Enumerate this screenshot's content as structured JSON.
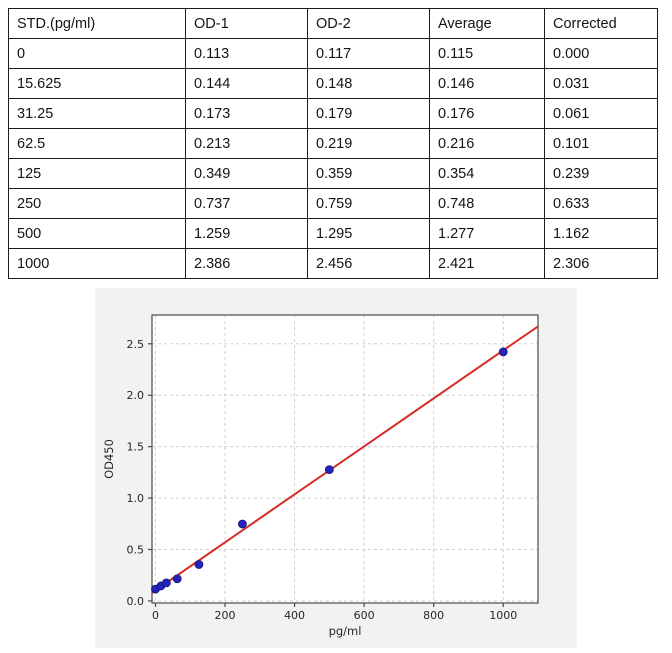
{
  "table": {
    "columns": [
      "STD.(pg/ml)",
      "OD-1",
      "OD-2",
      "Average",
      "Corrected"
    ],
    "rows": [
      [
        "0",
        "0.113",
        "0.117",
        "0.115",
        "0.000"
      ],
      [
        "15.625",
        "0.144",
        "0.148",
        "0.146",
        "0.031"
      ],
      [
        "31.25",
        "0.173",
        "0.179",
        "0.176",
        "0.061"
      ],
      [
        "62.5",
        "0.213",
        "0.219",
        "0.216",
        "0.101"
      ],
      [
        "125",
        "0.349",
        "0.359",
        "0.354",
        "0.239"
      ],
      [
        "250",
        "0.737",
        "0.759",
        "0.748",
        "0.633"
      ],
      [
        "500",
        "1.259",
        "1.295",
        "1.277",
        "1.162"
      ],
      [
        "1000",
        "2.386",
        "2.456",
        "2.421",
        "2.306"
      ]
    ]
  },
  "chart_data": {
    "type": "scatter",
    "title": "",
    "xlabel": "pg/ml",
    "ylabel": "OD450",
    "x": [
      0,
      15.625,
      31.25,
      62.5,
      125,
      250,
      500,
      1000
    ],
    "y": [
      0.115,
      0.146,
      0.176,
      0.216,
      0.354,
      0.748,
      1.277,
      2.421
    ],
    "fit_line": {
      "slope": 0.002333,
      "intercept": 0.103
    },
    "xlim": [
      -10,
      1100
    ],
    "ylim": [
      -0.02,
      2.78
    ],
    "xticks": {
      "values": [
        0,
        200,
        400,
        600,
        800,
        1000
      ],
      "labels": [
        "0",
        "200",
        "400",
        "600",
        "800",
        "1000"
      ]
    },
    "yticks": {
      "values": [
        0,
        0.5,
        1.0,
        1.5,
        2.0,
        2.5
      ],
      "labels": [
        "0.0",
        "0.5",
        "1.0",
        "1.5",
        "2.0",
        "2.5"
      ]
    },
    "grid": true,
    "legend": null,
    "colors": {
      "point": "#2424bb",
      "point_edge": "#14147e",
      "line": "#d62b26",
      "panel_bg": "#f2f2f0",
      "plot_bg": "#ffffff",
      "grid": "#c9c9c9",
      "frame": "#4a4a4a",
      "text": "#262626"
    }
  }
}
